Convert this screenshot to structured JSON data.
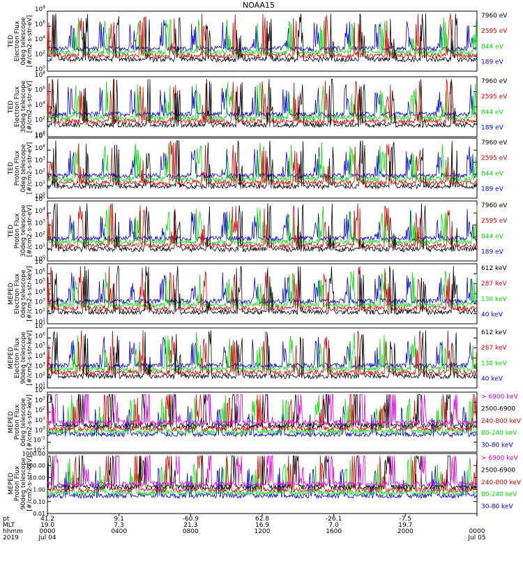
{
  "title": "NOAA15",
  "colors": {
    "black": "#000000",
    "red": "#e00000",
    "green": "#00e000",
    "blue": "#0000e0",
    "magenta": "#e000e0"
  },
  "time_axis": {
    "row_labels": [
      "pt",
      "MLT",
      "hhmm",
      "2019"
    ],
    "ticks": [
      {
        "frac": 0.0,
        "values": [
          "41.2",
          "19.0",
          "0000",
          "Jul 04"
        ]
      },
      {
        "frac": 0.1667,
        "values": [
          "9.1",
          "7.3",
          "0400",
          ""
        ]
      },
      {
        "frac": 0.3333,
        "values": [
          "-60.9",
          "21.3",
          "0800",
          ""
        ]
      },
      {
        "frac": 0.5,
        "values": [
          "62.8",
          "16.9",
          "1200",
          ""
        ]
      },
      {
        "frac": 0.6667,
        "values": [
          "-26.1",
          "7.0",
          "1600",
          ""
        ]
      },
      {
        "frac": 0.8333,
        "values": [
          "-7.5",
          "19.7",
          "2000",
          ""
        ]
      },
      {
        "frac": 1.0,
        "values": [
          "",
          "",
          "0000",
          "Jul 05"
        ]
      }
    ]
  },
  "chart_data": [
    {
      "type": "line",
      "ylabel": [
        "TED",
        "Electron Flux",
        "0deg telescope",
        "[#/cm2-s-str-eV]"
      ],
      "yscale": "log",
      "yticks": [
        "10^0",
        "10^2",
        "10^4",
        "10^6",
        "10^8"
      ],
      "ylim": [
        "1e0",
        "1e8"
      ],
      "series": [
        {
          "name": "7960 eV",
          "color": "#000000"
        },
        {
          "name": "2595 eV",
          "color": "#e00000"
        },
        {
          "name": "844 eV",
          "color": "#00e000"
        },
        {
          "name": "189 eV",
          "color": "#0000e0"
        }
      ]
    },
    {
      "type": "line",
      "ylabel": [
        "TED",
        "Electron Flux",
        "30deg telescope",
        "[#/cm2-s-str-eV]"
      ],
      "yscale": "log",
      "yticks": [
        "10^0",
        "10^2",
        "10^4",
        "10^6",
        "10^8"
      ],
      "ylim": [
        "1e0",
        "1e8"
      ],
      "series": [
        {
          "name": "7960 eV",
          "color": "#000000"
        },
        {
          "name": "2595 eV",
          "color": "#e00000"
        },
        {
          "name": "844 eV",
          "color": "#00e000"
        },
        {
          "name": "189 eV",
          "color": "#0000e0"
        }
      ]
    },
    {
      "type": "line",
      "ylabel": [
        "TED",
        "Proton Flux",
        "0deg telescope",
        "[#/cm2-s-str-eV]"
      ],
      "yscale": "log",
      "yticks": [
        "10^0",
        "10^1",
        "10^2",
        "10^3",
        "10^4",
        "10^5"
      ],
      "ylim": [
        "1e0",
        "1e5"
      ],
      "series": [
        {
          "name": "7960 eV",
          "color": "#000000"
        },
        {
          "name": "2595 eV",
          "color": "#e00000"
        },
        {
          "name": "844 eV",
          "color": "#00e000"
        },
        {
          "name": "189 eV",
          "color": "#0000e0"
        }
      ]
    },
    {
      "type": "line",
      "ylabel": [
        "TED",
        "Proton Flux",
        "30deg telescope",
        "[#/cm2-s-str-eV]"
      ],
      "yscale": "log",
      "yticks": [
        "10^0",
        "10^1",
        "10^2",
        "10^3",
        "10^4",
        "10^5"
      ],
      "ylim": [
        "1e0",
        "1e5"
      ],
      "series": [
        {
          "name": "7960 eV",
          "color": "#000000"
        },
        {
          "name": "2595 eV",
          "color": "#e00000"
        },
        {
          "name": "844 eV",
          "color": "#00e000"
        },
        {
          "name": "189 eV",
          "color": "#0000e0"
        }
      ]
    },
    {
      "type": "line",
      "ylabel": [
        "MEPED",
        "Electron Flux",
        "0deg telescope",
        "[#/cm2-s-str-keV]"
      ],
      "yscale": "log",
      "yticks": [
        "10^1",
        "10^2",
        "10^3",
        "10^4",
        "10^5",
        "10^6",
        "10^7"
      ],
      "ylim": [
        "1e1",
        "1e7"
      ],
      "series": [
        {
          "name": "612 keV",
          "color": "#000000"
        },
        {
          "name": "287 keV",
          "color": "#e00000"
        },
        {
          "name": "130 keV",
          "color": "#00e000"
        },
        {
          "name": "40 keV",
          "color": "#0000e0"
        }
      ]
    },
    {
      "type": "line",
      "ylabel": [
        "MEPED",
        "Electron Flux",
        "90deg telescope",
        "[#/cm2-s-str-keV]"
      ],
      "yscale": "log",
      "yticks": [
        "10^1",
        "10^2",
        "10^3",
        "10^4",
        "10^5",
        "10^6",
        "10^7"
      ],
      "ylim": [
        "1e1",
        "1e7"
      ],
      "series": [
        {
          "name": "612 keV",
          "color": "#000000"
        },
        {
          "name": "287 keV",
          "color": "#e00000"
        },
        {
          "name": "130 keV",
          "color": "#00e000"
        },
        {
          "name": "40 keV",
          "color": "#0000e0"
        }
      ]
    },
    {
      "type": "line",
      "ylabel": [
        "MEPED",
        "Proton Flux",
        "0deg telescope",
        "[#/cm2-s-str-keV]"
      ],
      "yscale": "log",
      "yticks": [
        "10^-2",
        "10^-1",
        "10^0",
        "10^1",
        "10^2",
        "10^3",
        "10^4"
      ],
      "ylim": [
        "1e-2",
        "1e4"
      ],
      "series": [
        {
          "name": "> 6900 keV",
          "color": "#e000e0"
        },
        {
          "name": "2500-6900",
          "color": "#000000"
        },
        {
          "name": "240-800 keV",
          "color": "#e00000"
        },
        {
          "name": "80-240 keV",
          "color": "#00e000"
        },
        {
          "name": "30-80 keV",
          "color": "#0000e0"
        }
      ]
    },
    {
      "type": "line",
      "ylabel": [
        "MEPED",
        "Proton Flux",
        "90deg telescope",
        "[#/cm2-s-str-keV]"
      ],
      "yscale": "log",
      "yticks": [
        "0.01",
        "0.10",
        "1.00",
        "10.00",
        "100.00",
        "1000.00"
      ],
      "ylim": [
        "1e-2",
        "1e3"
      ],
      "series": [
        {
          "name": "> 6900 keV",
          "color": "#e000e0"
        },
        {
          "name": "2500-6900",
          "color": "#000000"
        },
        {
          "name": "240-800 keV",
          "color": "#e00000"
        },
        {
          "name": "80-240 keV",
          "color": "#00e000"
        },
        {
          "name": "30-80 keV",
          "color": "#0000e0"
        }
      ]
    }
  ]
}
